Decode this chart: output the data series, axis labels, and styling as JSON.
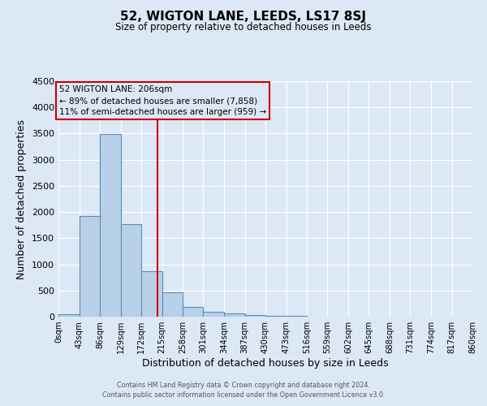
{
  "title": "52, WIGTON LANE, LEEDS, LS17 8SJ",
  "subtitle": "Size of property relative to detached houses in Leeds",
  "xlabel": "Distribution of detached houses by size in Leeds",
  "ylabel": "Number of detached properties",
  "bin_edges": [
    0,
    43,
    86,
    129,
    172,
    215,
    258,
    301,
    344,
    387,
    430,
    473,
    516,
    559,
    602,
    645,
    688,
    731,
    774,
    817,
    860
  ],
  "bin_labels": [
    "0sqm",
    "43sqm",
    "86sqm",
    "129sqm",
    "172sqm",
    "215sqm",
    "258sqm",
    "301sqm",
    "344sqm",
    "387sqm",
    "430sqm",
    "473sqm",
    "516sqm",
    "559sqm",
    "602sqm",
    "645sqm",
    "688sqm",
    "731sqm",
    "774sqm",
    "817sqm",
    "860sqm"
  ],
  "counts": [
    50,
    1930,
    3490,
    1770,
    870,
    460,
    190,
    95,
    55,
    35,
    20,
    10,
    0,
    0,
    0,
    0,
    0,
    0,
    0,
    0
  ],
  "bar_color": "#b8d0e8",
  "bar_edge_color": "#5b8db8",
  "vline_x": 206,
  "vline_color": "#cc0000",
  "ylim": [
    0,
    4500
  ],
  "yticks": [
    0,
    500,
    1000,
    1500,
    2000,
    2500,
    3000,
    3500,
    4000,
    4500
  ],
  "annotation_title": "52 WIGTON LANE: 206sqm",
  "annotation_line1": "← 89% of detached houses are smaller (7,858)",
  "annotation_line2": "11% of semi-detached houses are larger (959) →",
  "annotation_box_color": "#cc0000",
  "background_color": "#dce8f5",
  "grid_color": "#ffffff",
  "footer1": "Contains HM Land Registry data © Crown copyright and database right 2024.",
  "footer2": "Contains public sector information licensed under the Open Government Licence v3.0."
}
